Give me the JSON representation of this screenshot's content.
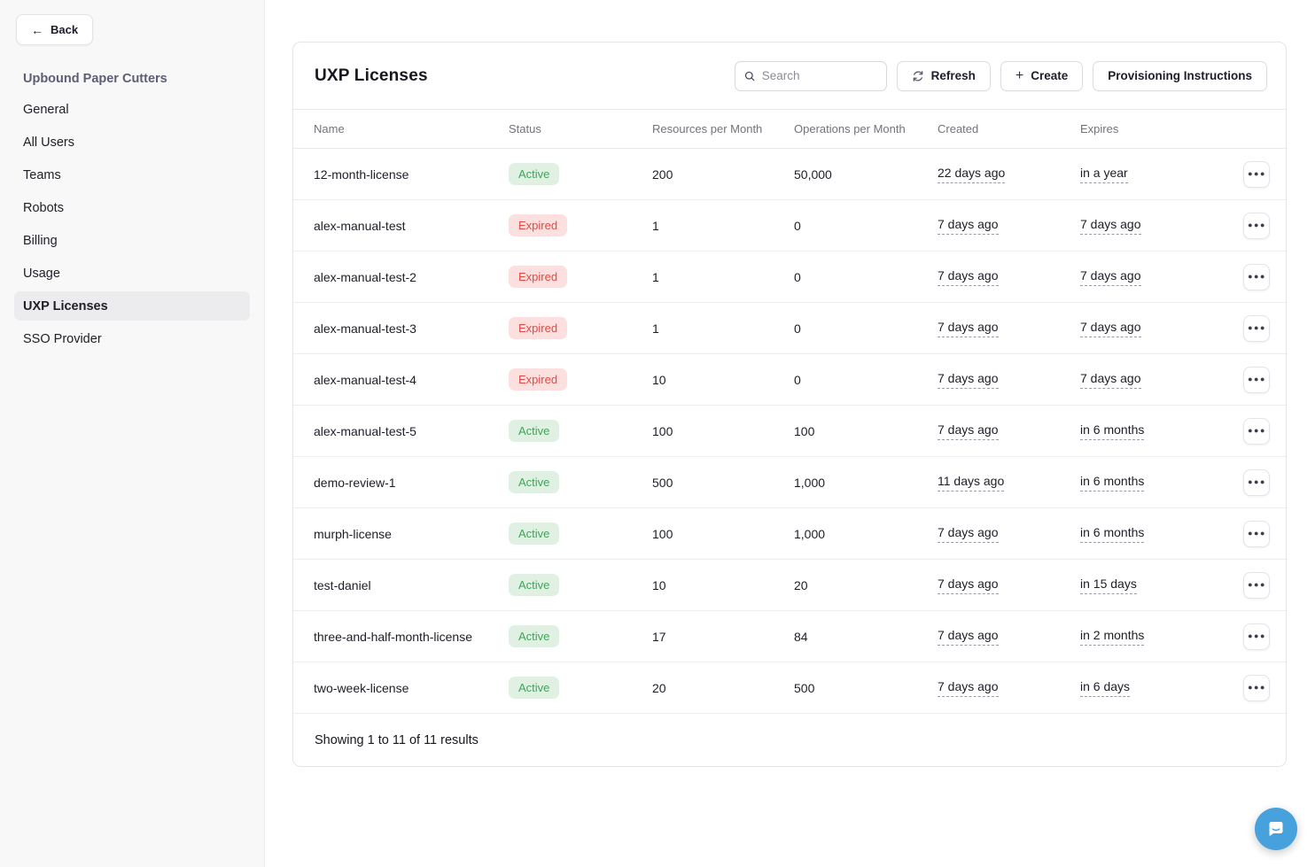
{
  "colors": {
    "active_bg": "#e0f1e3",
    "active_text": "#43a25b",
    "expired_bg": "#fce0df",
    "expired_text": "#e14a44",
    "chat_bubble": "#47a1dc"
  },
  "sidebar": {
    "back_label": "Back",
    "org_name": "Upbound Paper Cutters",
    "items": [
      {
        "label": "General",
        "active": false
      },
      {
        "label": "All Users",
        "active": false
      },
      {
        "label": "Teams",
        "active": false
      },
      {
        "label": "Robots",
        "active": false
      },
      {
        "label": "Billing",
        "active": false
      },
      {
        "label": "Usage",
        "active": false
      },
      {
        "label": "UXP Licenses",
        "active": true
      },
      {
        "label": "SSO Provider",
        "active": false
      }
    ]
  },
  "main": {
    "title": "UXP Licenses",
    "search_placeholder": "Search",
    "refresh_label": "Refresh",
    "create_label": "Create",
    "provisioning_label": "Provisioning Instructions",
    "table": {
      "columns": [
        "Name",
        "Status",
        "Resources per Month",
        "Operations per Month",
        "Created",
        "Expires"
      ],
      "rows": [
        {
          "name": "12-month-license",
          "status": "Active",
          "resources": "200",
          "operations": "50,000",
          "created": "22 days ago",
          "expires": "in a year"
        },
        {
          "name": "alex-manual-test",
          "status": "Expired",
          "resources": "1",
          "operations": "0",
          "created": "7 days ago",
          "expires": "7 days ago"
        },
        {
          "name": "alex-manual-test-2",
          "status": "Expired",
          "resources": "1",
          "operations": "0",
          "created": "7 days ago",
          "expires": "7 days ago"
        },
        {
          "name": "alex-manual-test-3",
          "status": "Expired",
          "resources": "1",
          "operations": "0",
          "created": "7 days ago",
          "expires": "7 days ago"
        },
        {
          "name": "alex-manual-test-4",
          "status": "Expired",
          "resources": "10",
          "operations": "0",
          "created": "7 days ago",
          "expires": "7 days ago"
        },
        {
          "name": "alex-manual-test-5",
          "status": "Active",
          "resources": "100",
          "operations": "100",
          "created": "7 days ago",
          "expires": "in 6 months"
        },
        {
          "name": "demo-review-1",
          "status": "Active",
          "resources": "500",
          "operations": "1,000",
          "created": "11 days ago",
          "expires": "in 6 months"
        },
        {
          "name": "murph-license",
          "status": "Active",
          "resources": "100",
          "operations": "1,000",
          "created": "7 days ago",
          "expires": "in 6 months"
        },
        {
          "name": "test-daniel",
          "status": "Active",
          "resources": "10",
          "operations": "20",
          "created": "7 days ago",
          "expires": "in 15 days"
        },
        {
          "name": "three-and-half-month-license",
          "status": "Active",
          "resources": "17",
          "operations": "84",
          "created": "7 days ago",
          "expires": "in 2 months"
        },
        {
          "name": "two-week-license",
          "status": "Active",
          "resources": "20",
          "operations": "500",
          "created": "7 days ago",
          "expires": "in 6 days"
        }
      ],
      "footer": "Showing 1 to 11 of 11 results"
    }
  }
}
